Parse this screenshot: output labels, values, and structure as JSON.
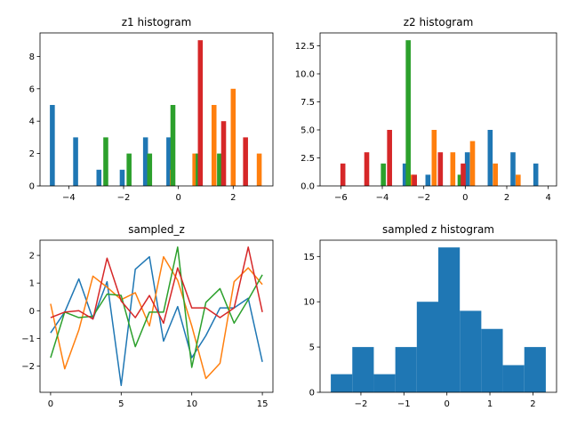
{
  "colors": {
    "c0": "#1f77b4",
    "c1": "#ff7f0e",
    "c2": "#2ca02c",
    "c3": "#d62728"
  },
  "chart_data": [
    {
      "id": "z1",
      "type": "bar",
      "title": "z1 histogram",
      "xlim": [
        -5.05,
        3.45
      ],
      "ylim": [
        0,
        9.45
      ],
      "xticks": [
        -4,
        -2,
        0,
        2
      ],
      "yticks": [
        0,
        2,
        4,
        6,
        8
      ],
      "bar_width": 0.18,
      "series": [
        {
          "color": "c0",
          "bars": [
            {
              "x": -4.6,
              "y": 5
            },
            {
              "x": -3.75,
              "y": 3
            },
            {
              "x": -2.9,
              "y": 1
            },
            {
              "x": -2.05,
              "y": 1
            },
            {
              "x": -1.2,
              "y": 3
            },
            {
              "x": -0.35,
              "y": 3
            },
            {
              "x": 0.5,
              "y": 0
            },
            {
              "x": 1.35,
              "y": 0
            },
            {
              "x": 2.2,
              "y": 0
            },
            {
              "x": 3.05,
              "y": 0
            }
          ]
        },
        {
          "color": "c1",
          "bars": [
            {
              "x": -4.2,
              "y": 0
            },
            {
              "x": -3.35,
              "y": 0
            },
            {
              "x": -2.5,
              "y": 0
            },
            {
              "x": -1.65,
              "y": 0
            },
            {
              "x": -0.8,
              "y": 0
            },
            {
              "x": -0.22,
              "y": 1
            },
            {
              "x": 0.6,
              "y": 2
            },
            {
              "x": 1.3,
              "y": 5
            },
            {
              "x": 2.0,
              "y": 6
            },
            {
              "x": 2.95,
              "y": 2
            }
          ]
        },
        {
          "color": "c2",
          "bars": [
            {
              "x": -4.0,
              "y": 0
            },
            {
              "x": -2.65,
              "y": 3
            },
            {
              "x": -1.8,
              "y": 2
            },
            {
              "x": -1.05,
              "y": 2
            },
            {
              "x": -0.2,
              "y": 5
            },
            {
              "x": 0.72,
              "y": 2
            },
            {
              "x": 1.5,
              "y": 2
            }
          ]
        },
        {
          "color": "c3",
          "bars": [
            {
              "x": -3.9,
              "y": 0
            },
            {
              "x": -3.05,
              "y": 0
            },
            {
              "x": -2.2,
              "y": 0
            },
            {
              "x": -1.35,
              "y": 0
            },
            {
              "x": -0.5,
              "y": 0
            },
            {
              "x": 0.8,
              "y": 9
            },
            {
              "x": 1.65,
              "y": 4
            },
            {
              "x": 2.45,
              "y": 3
            }
          ]
        }
      ]
    },
    {
      "id": "z2",
      "type": "bar",
      "title": "z2 histogram",
      "xlim": [
        -7.0,
        4.4
      ],
      "ylim": [
        0,
        13.65
      ],
      "xticks": [
        -6,
        -4,
        -2,
        0,
        2,
        4
      ],
      "yticks": [
        0.0,
        2.5,
        5.0,
        7.5,
        10.0,
        12.5
      ],
      "ytick_labels": [
        "0.0",
        "2.5",
        "5.0",
        "7.5",
        "10.0",
        "12.5"
      ],
      "bar_width": 0.24,
      "series": [
        {
          "color": "c0",
          "bars": [
            {
              "x": -2.9,
              "y": 2
            },
            {
              "x": -1.8,
              "y": 1
            },
            {
              "x": -0.7,
              "y": 0
            },
            {
              "x": 0.1,
              "y": 3
            },
            {
              "x": 1.2,
              "y": 5
            },
            {
              "x": 2.3,
              "y": 3
            },
            {
              "x": 3.4,
              "y": 2
            }
          ]
        },
        {
          "color": "c1",
          "bars": [
            {
              "x": -2.6,
              "y": 1
            },
            {
              "x": -1.5,
              "y": 5
            },
            {
              "x": -0.6,
              "y": 3
            },
            {
              "x": 0.35,
              "y": 4
            },
            {
              "x": 1.45,
              "y": 2
            },
            {
              "x": 2.55,
              "y": 1
            }
          ]
        },
        {
          "color": "c2",
          "bars": [
            {
              "x": -3.95,
              "y": 2
            },
            {
              "x": -2.75,
              "y": 13
            },
            {
              "x": -0.25,
              "y": 1
            }
          ]
        },
        {
          "color": "c3",
          "bars": [
            {
              "x": -5.9,
              "y": 2
            },
            {
              "x": -4.75,
              "y": 3
            },
            {
              "x": -3.65,
              "y": 5
            },
            {
              "x": -2.45,
              "y": 1
            },
            {
              "x": -1.2,
              "y": 3
            },
            {
              "x": -0.1,
              "y": 2
            }
          ]
        }
      ]
    },
    {
      "id": "sampled_z",
      "type": "line",
      "title": "sampled_z",
      "xlim": [
        -0.75,
        15.75
      ],
      "ylim": [
        -2.95,
        2.55
      ],
      "xticks": [
        0,
        5,
        10,
        15
      ],
      "yticks": [
        -2,
        -1,
        0,
        1,
        2
      ],
      "x": [
        0,
        1,
        2,
        3,
        4,
        5,
        6,
        7,
        8,
        9,
        10,
        11,
        12,
        13,
        14,
        15
      ],
      "series": [
        {
          "color": "c0",
          "values": [
            -0.8,
            -0.05,
            1.15,
            -0.3,
            1.05,
            -2.7,
            1.5,
            1.95,
            -1.1,
            0.15,
            -1.7,
            -0.9,
            0.1,
            0.1,
            0.45,
            -1.85
          ]
        },
        {
          "color": "c1",
          "values": [
            0.25,
            -2.1,
            -0.7,
            1.25,
            0.85,
            0.4,
            0.65,
            -0.55,
            1.95,
            1.1,
            -0.55,
            -2.45,
            -1.9,
            1.05,
            1.55,
            0.95
          ]
        },
        {
          "color": "c2",
          "values": [
            -1.7,
            -0.05,
            -0.25,
            -0.2,
            0.6,
            0.55,
            -1.3,
            -0.05,
            -0.05,
            2.3,
            -2.05,
            0.3,
            0.8,
            -0.45,
            0.4,
            1.3
          ]
        },
        {
          "color": "c3",
          "values": [
            -0.25,
            -0.05,
            0.0,
            -0.3,
            1.9,
            0.35,
            -0.25,
            0.55,
            -0.45,
            1.55,
            0.1,
            0.1,
            -0.25,
            0.1,
            2.3,
            -0.05
          ]
        }
      ]
    },
    {
      "id": "sampled_hist",
      "type": "bar",
      "title": "sampled z histogram",
      "xlim": [
        -2.95,
        2.55
      ],
      "ylim": [
        0,
        16.8
      ],
      "xticks": [
        -2,
        -1,
        0,
        1,
        2
      ],
      "yticks": [
        0,
        5,
        10,
        15
      ],
      "color": "c0",
      "edges": [
        -2.7,
        -2.2,
        -1.7,
        -1.2,
        -0.7,
        -0.2,
        0.3,
        0.8,
        1.3,
        1.8,
        2.3
      ],
      "values": [
        2,
        5,
        2,
        5,
        10,
        16,
        9,
        7,
        3,
        5
      ]
    }
  ]
}
